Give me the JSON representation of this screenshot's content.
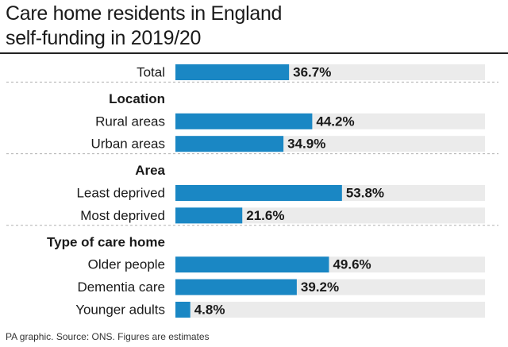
{
  "title_lines": [
    "Care home residents in England",
    "self-funding in 2019/20"
  ],
  "footer": "PA graphic. Source: ONS. Figures are estimates",
  "colors": {
    "bar": "#1a87c4",
    "track": "#ebebeb",
    "separator": "#b0b0b0",
    "text": "#1a1a1a"
  },
  "chart_data": {
    "type": "bar",
    "orientation": "horizontal",
    "unit": "%",
    "xlim": [
      0,
      100
    ],
    "groups": [
      {
        "heading": "",
        "rows": [
          {
            "label": "Total",
            "value": 36.7,
            "value_label": "36.7%"
          }
        ]
      },
      {
        "heading": "Location",
        "rows": [
          {
            "label": "Rural areas",
            "value": 44.2,
            "value_label": "44.2%"
          },
          {
            "label": "Urban areas",
            "value": 34.9,
            "value_label": "34.9%"
          }
        ]
      },
      {
        "heading": "Area",
        "rows": [
          {
            "label": "Least deprived",
            "value": 53.8,
            "value_label": "53.8%"
          },
          {
            "label": "Most deprived",
            "value": 21.6,
            "value_label": "21.6%"
          }
        ]
      },
      {
        "heading": "Type of care home",
        "rows": [
          {
            "label": "Older people",
            "value": 49.6,
            "value_label": "49.6%"
          },
          {
            "label": "Dementia care",
            "value": 39.2,
            "value_label": "39.2%"
          },
          {
            "label": "Younger adults",
            "value": 4.8,
            "value_label": "4.8%"
          }
        ]
      }
    ]
  }
}
